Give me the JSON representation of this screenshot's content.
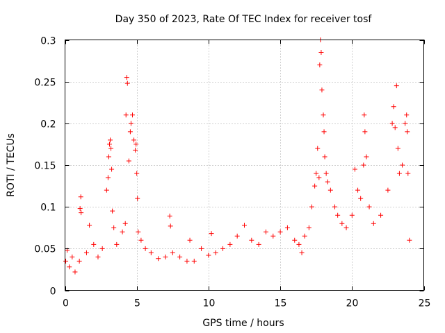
{
  "chart_data": {
    "type": "scatter",
    "title": "Day 350 of 2023, Rate Of TEC Index for receiver tosf",
    "xlabel": "GPS time / hours",
    "ylabel": "ROTI / TECUs",
    "xlim": [
      0,
      25
    ],
    "ylim": [
      0,
      0.3
    ],
    "x_ticks": [
      0,
      5,
      10,
      15,
      20,
      25
    ],
    "x_tick_labels": [
      "0",
      "5",
      "10",
      "15",
      "20",
      "25"
    ],
    "y_ticks": [
      0,
      0.05,
      0.1,
      0.15,
      0.2,
      0.25,
      0.3
    ],
    "y_tick_labels": [
      "0",
      "0.05",
      "0.1",
      "0.15",
      "0.2",
      "0.25",
      "0.3"
    ],
    "grid": true,
    "marker": "plus",
    "color": "#ff0000",
    "series": [
      {
        "name": "ROTI",
        "points": [
          [
            0.05,
            0.035
          ],
          [
            0.15,
            0.048
          ],
          [
            0.3,
            0.028
          ],
          [
            0.5,
            0.04
          ],
          [
            0.7,
            0.022
          ],
          [
            1.0,
            0.035
          ],
          [
            1.05,
            0.098
          ],
          [
            1.1,
            0.112
          ],
          [
            1.12,
            0.093
          ],
          [
            1.5,
            0.045
          ],
          [
            1.7,
            0.078
          ],
          [
            2.0,
            0.055
          ],
          [
            2.3,
            0.04
          ],
          [
            2.6,
            0.05
          ],
          [
            2.9,
            0.12
          ],
          [
            3.0,
            0.135
          ],
          [
            3.05,
            0.16
          ],
          [
            3.1,
            0.175
          ],
          [
            3.15,
            0.18
          ],
          [
            3.2,
            0.17
          ],
          [
            3.25,
            0.145
          ],
          [
            3.3,
            0.095
          ],
          [
            3.4,
            0.075
          ],
          [
            3.6,
            0.055
          ],
          [
            4.0,
            0.07
          ],
          [
            4.2,
            0.08
          ],
          [
            4.25,
            0.21
          ],
          [
            4.3,
            0.255
          ],
          [
            4.35,
            0.248
          ],
          [
            4.45,
            0.155
          ],
          [
            4.55,
            0.19
          ],
          [
            4.6,
            0.2
          ],
          [
            4.7,
            0.21
          ],
          [
            4.8,
            0.18
          ],
          [
            4.9,
            0.168
          ],
          [
            4.95,
            0.175
          ],
          [
            5.0,
            0.14
          ],
          [
            5.05,
            0.11
          ],
          [
            5.1,
            0.07
          ],
          [
            5.3,
            0.06
          ],
          [
            5.6,
            0.05
          ],
          [
            6.0,
            0.045
          ],
          [
            6.5,
            0.038
          ],
          [
            7.0,
            0.04
          ],
          [
            7.3,
            0.089
          ],
          [
            7.35,
            0.077
          ],
          [
            7.5,
            0.045
          ],
          [
            8.0,
            0.04
          ],
          [
            8.5,
            0.035
          ],
          [
            8.7,
            0.06
          ],
          [
            9.0,
            0.035
          ],
          [
            9.5,
            0.05
          ],
          [
            10.0,
            0.042
          ],
          [
            10.2,
            0.068
          ],
          [
            10.5,
            0.045
          ],
          [
            11.0,
            0.05
          ],
          [
            11.5,
            0.055
          ],
          [
            12.0,
            0.065
          ],
          [
            12.5,
            0.078
          ],
          [
            13.0,
            0.06
          ],
          [
            13.5,
            0.055
          ],
          [
            14.0,
            0.07
          ],
          [
            14.5,
            0.065
          ],
          [
            15.0,
            0.07
          ],
          [
            15.5,
            0.075
          ],
          [
            16.0,
            0.06
          ],
          [
            16.3,
            0.055
          ],
          [
            16.5,
            0.045
          ],
          [
            16.7,
            0.065
          ],
          [
            17.0,
            0.075
          ],
          [
            17.2,
            0.1
          ],
          [
            17.4,
            0.125
          ],
          [
            17.5,
            0.14
          ],
          [
            17.6,
            0.17
          ],
          [
            17.7,
            0.135
          ],
          [
            17.75,
            0.27
          ],
          [
            17.8,
            0.3
          ],
          [
            17.85,
            0.285
          ],
          [
            17.9,
            0.24
          ],
          [
            18.0,
            0.21
          ],
          [
            18.05,
            0.19
          ],
          [
            18.1,
            0.16
          ],
          [
            18.2,
            0.14
          ],
          [
            18.3,
            0.13
          ],
          [
            18.5,
            0.12
          ],
          [
            18.8,
            0.1
          ],
          [
            19.0,
            0.09
          ],
          [
            19.3,
            0.08
          ],
          [
            19.6,
            0.075
          ],
          [
            20.0,
            0.09
          ],
          [
            20.2,
            0.145
          ],
          [
            20.4,
            0.12
          ],
          [
            20.6,
            0.11
          ],
          [
            20.8,
            0.15
          ],
          [
            20.85,
            0.21
          ],
          [
            20.9,
            0.19
          ],
          [
            21.0,
            0.16
          ],
          [
            21.2,
            0.1
          ],
          [
            21.5,
            0.08
          ],
          [
            22.0,
            0.09
          ],
          [
            22.5,
            0.12
          ],
          [
            22.8,
            0.2
          ],
          [
            22.9,
            0.22
          ],
          [
            23.0,
            0.195
          ],
          [
            23.1,
            0.245
          ],
          [
            23.2,
            0.17
          ],
          [
            23.3,
            0.14
          ],
          [
            23.5,
            0.15
          ],
          [
            23.7,
            0.2
          ],
          [
            23.8,
            0.21
          ],
          [
            23.85,
            0.19
          ],
          [
            23.9,
            0.14
          ],
          [
            24.0,
            0.06
          ]
        ]
      }
    ]
  }
}
